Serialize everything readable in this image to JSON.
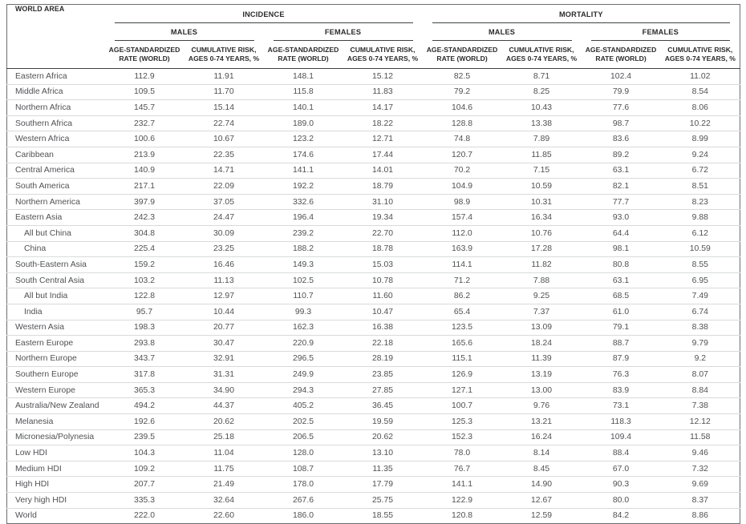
{
  "table": {
    "header": {
      "world_area": "WORLD AREA",
      "incidence": "INCIDENCE",
      "mortality": "MORTALITY",
      "males": "MALES",
      "females": "FEMALES",
      "asr": "AGE-STANDARDIZED RATE (WORLD)",
      "cum_risk": "CUMULATIVE RISK, AGES 0-74 YEARS, %"
    },
    "rows": [
      {
        "area": "Eastern Africa",
        "indent": false,
        "values": [
          "112.9",
          "11.91",
          "148.1",
          "15.12",
          "82.5",
          "8.71",
          "102.4",
          "11.02"
        ]
      },
      {
        "area": "Middle Africa",
        "indent": false,
        "values": [
          "109.5",
          "11.70",
          "115.8",
          "11.83",
          "79.2",
          "8.25",
          "79.9",
          "8.54"
        ]
      },
      {
        "area": "Northern Africa",
        "indent": false,
        "values": [
          "145.7",
          "15.14",
          "140.1",
          "14.17",
          "104.6",
          "10.43",
          "77.6",
          "8.06"
        ]
      },
      {
        "area": "Southern Africa",
        "indent": false,
        "values": [
          "232.7",
          "22.74",
          "189.0",
          "18.22",
          "128.8",
          "13.38",
          "98.7",
          "10.22"
        ]
      },
      {
        "area": "Western Africa",
        "indent": false,
        "values": [
          "100.6",
          "10.67",
          "123.2",
          "12.71",
          "74.8",
          "7.89",
          "83.6",
          "8.99"
        ]
      },
      {
        "area": "Caribbean",
        "indent": false,
        "values": [
          "213.9",
          "22.35",
          "174.6",
          "17.44",
          "120.7",
          "11.85",
          "89.2",
          "9.24"
        ]
      },
      {
        "area": "Central America",
        "indent": false,
        "values": [
          "140.9",
          "14.71",
          "141.1",
          "14.01",
          "70.2",
          "7.15",
          "63.1",
          "6.72"
        ]
      },
      {
        "area": "South America",
        "indent": false,
        "values": [
          "217.1",
          "22.09",
          "192.2",
          "18.79",
          "104.9",
          "10.59",
          "82.1",
          "8.51"
        ]
      },
      {
        "area": "Northern America",
        "indent": false,
        "values": [
          "397.9",
          "37.05",
          "332.6",
          "31.10",
          "98.9",
          "10.31",
          "77.7",
          "8.23"
        ]
      },
      {
        "area": "Eastern Asia",
        "indent": false,
        "values": [
          "242.3",
          "24.47",
          "196.4",
          "19.34",
          "157.4",
          "16.34",
          "93.0",
          "9.88"
        ]
      },
      {
        "area": "All but China",
        "indent": true,
        "values": [
          "304.8",
          "30.09",
          "239.2",
          "22.70",
          "112.0",
          "10.76",
          "64.4",
          "6.12"
        ]
      },
      {
        "area": "China",
        "indent": true,
        "values": [
          "225.4",
          "23.25",
          "188.2",
          "18.78",
          "163.9",
          "17.28",
          "98.1",
          "10.59"
        ]
      },
      {
        "area": "South-Eastern Asia",
        "indent": false,
        "values": [
          "159.2",
          "16.46",
          "149.3",
          "15.03",
          "114.1",
          "11.82",
          "80.8",
          "8.55"
        ]
      },
      {
        "area": "South Central Asia",
        "indent": false,
        "values": [
          "103.2",
          "11.13",
          "102.5",
          "10.78",
          "71.2",
          "7.88",
          "63.1",
          "6.95"
        ]
      },
      {
        "area": "All but India",
        "indent": true,
        "values": [
          "122.8",
          "12.97",
          "110.7",
          "11.60",
          "86.2",
          "9.25",
          "68.5",
          "7.49"
        ]
      },
      {
        "area": "India",
        "indent": true,
        "values": [
          "95.7",
          "10.44",
          "99.3",
          "10.47",
          "65.4",
          "7.37",
          "61.0",
          "6.74"
        ]
      },
      {
        "area": "Western Asia",
        "indent": false,
        "values": [
          "198.3",
          "20.77",
          "162.3",
          "16.38",
          "123.5",
          "13.09",
          "79.1",
          "8.38"
        ]
      },
      {
        "area": "Eastern Europe",
        "indent": false,
        "values": [
          "293.8",
          "30.47",
          "220.9",
          "22.18",
          "165.6",
          "18.24",
          "88.7",
          "9.79"
        ]
      },
      {
        "area": "Northern Europe",
        "indent": false,
        "values": [
          "343.7",
          "32.91",
          "296.5",
          "28.19",
          "115.1",
          "11.39",
          "87.9",
          "9.2"
        ]
      },
      {
        "area": "Southern Europe",
        "indent": false,
        "values": [
          "317.8",
          "31.31",
          "249.9",
          "23.85",
          "126.9",
          "13.19",
          "76.3",
          "8.07"
        ]
      },
      {
        "area": "Western Europe",
        "indent": false,
        "values": [
          "365.3",
          "34.90",
          "294.3",
          "27.85",
          "127.1",
          "13.00",
          "83.9",
          "8.84"
        ]
      },
      {
        "area": "Australia/New Zealand",
        "indent": false,
        "values": [
          "494.2",
          "44.37",
          "405.2",
          "36.45",
          "100.7",
          "9.76",
          "73.1",
          "7.38"
        ]
      },
      {
        "area": "Melanesia",
        "indent": false,
        "values": [
          "192.6",
          "20.62",
          "202.5",
          "19.59",
          "125.3",
          "13.21",
          "118.3",
          "12.12"
        ]
      },
      {
        "area": "Micronesia/Polynesia",
        "indent": false,
        "values": [
          "239.5",
          "25.18",
          "206.5",
          "20.62",
          "152.3",
          "16.24",
          "109.4",
          "11.58"
        ]
      },
      {
        "area": "Low HDI",
        "indent": false,
        "values": [
          "104.3",
          "11.04",
          "128.0",
          "13.10",
          "78.0",
          "8.14",
          "88.4",
          "9.46"
        ]
      },
      {
        "area": "Medium HDI",
        "indent": false,
        "values": [
          "109.2",
          "11.75",
          "108.7",
          "11.35",
          "76.7",
          "8.45",
          "67.0",
          "7.32"
        ]
      },
      {
        "area": "High HDI",
        "indent": false,
        "values": [
          "207.7",
          "21.49",
          "178.0",
          "17.79",
          "141.1",
          "14.90",
          "90.3",
          "9.69"
        ]
      },
      {
        "area": "Very high HDI",
        "indent": false,
        "values": [
          "335.3",
          "32.64",
          "267.6",
          "25.75",
          "122.9",
          "12.67",
          "80.0",
          "8.37"
        ]
      },
      {
        "area": "World",
        "indent": false,
        "values": [
          "222.0",
          "22.60",
          "186.0",
          "18.55",
          "120.8",
          "12.59",
          "84.2",
          "8.86"
        ]
      }
    ]
  },
  "colors": {
    "outer_border": "#6d6e71",
    "header_rule": "#404144",
    "row_rule": "#d9dadb",
    "header_text": "#2b2b2d",
    "body_text": "#505154",
    "background": "#ffffff"
  }
}
